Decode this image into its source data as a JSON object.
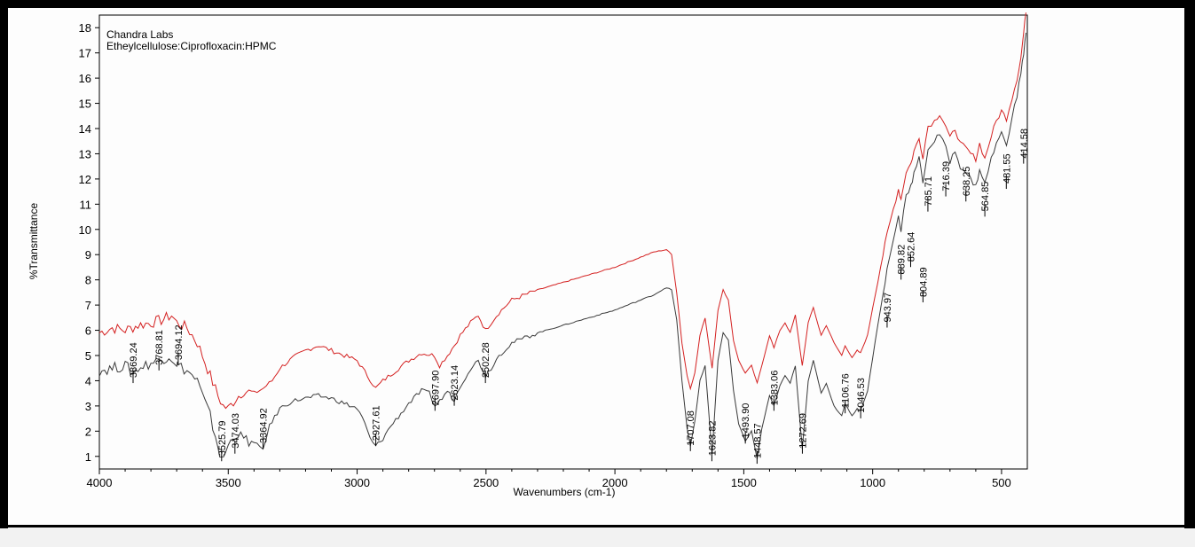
{
  "chart_data": {
    "type": "line",
    "title": "Chandra Labs",
    "subtitle": "Etheylcellulose:Ciprofloxacin:HPMC",
    "xlabel": "Wavenumbers (cm-1)",
    "ylabel": "%Transmittance",
    "xlim": [
      4000,
      400
    ],
    "ylim": [
      0.5,
      18.5
    ],
    "x_reversed": true,
    "x_ticks": [
      4000,
      3500,
      3000,
      2500,
      2000,
      1500,
      1000,
      500
    ],
    "y_ticks": [
      1,
      2,
      3,
      4,
      5,
      6,
      7,
      8,
      9,
      10,
      11,
      12,
      13,
      14,
      15,
      16,
      17,
      18
    ],
    "grid": false,
    "series": [
      {
        "color": "#d42020",
        "points": [
          [
            4000,
            5.9
          ],
          [
            3950,
            6.1
          ],
          [
            3900,
            6.0
          ],
          [
            3850,
            6.2
          ],
          [
            3800,
            6.3
          ],
          [
            3760,
            6.4
          ],
          [
            3720,
            6.6
          ],
          [
            3700,
            6.3
          ],
          [
            3660,
            6.1
          ],
          [
            3620,
            5.5
          ],
          [
            3600,
            5.0
          ],
          [
            3570,
            4.2
          ],
          [
            3540,
            3.4
          ],
          [
            3520,
            3.0
          ],
          [
            3500,
            2.9
          ],
          [
            3470,
            3.3
          ],
          [
            3440,
            3.6
          ],
          [
            3400,
            3.5
          ],
          [
            3364,
            3.7
          ],
          [
            3330,
            4.0
          ],
          [
            3300,
            4.5
          ],
          [
            3250,
            4.9
          ],
          [
            3200,
            5.2
          ],
          [
            3150,
            5.4
          ],
          [
            3100,
            5.2
          ],
          [
            3050,
            5.0
          ],
          [
            3000,
            4.8
          ],
          [
            2960,
            4.2
          ],
          [
            2928,
            3.7
          ],
          [
            2900,
            4.0
          ],
          [
            2850,
            4.4
          ],
          [
            2800,
            4.8
          ],
          [
            2750,
            5.1
          ],
          [
            2700,
            5.0
          ],
          [
            2680,
            4.6
          ],
          [
            2650,
            5.0
          ],
          [
            2623,
            5.4
          ],
          [
            2600,
            5.8
          ],
          [
            2560,
            6.3
          ],
          [
            2530,
            6.6
          ],
          [
            2502,
            6.0
          ],
          [
            2480,
            6.3
          ],
          [
            2450,
            6.7
          ],
          [
            2400,
            7.2
          ],
          [
            2300,
            7.6
          ],
          [
            2200,
            7.9
          ],
          [
            2100,
            8.2
          ],
          [
            2000,
            8.5
          ],
          [
            1900,
            8.9
          ],
          [
            1850,
            9.1
          ],
          [
            1800,
            9.2
          ],
          [
            1780,
            9.0
          ],
          [
            1760,
            7.5
          ],
          [
            1740,
            5.5
          ],
          [
            1720,
            4.2
          ],
          [
            1707,
            3.7
          ],
          [
            1690,
            4.3
          ],
          [
            1670,
            5.8
          ],
          [
            1650,
            6.5
          ],
          [
            1623,
            4.5
          ],
          [
            1600,
            6.8
          ],
          [
            1580,
            7.6
          ],
          [
            1560,
            7.2
          ],
          [
            1540,
            5.6
          ],
          [
            1520,
            4.8
          ],
          [
            1494,
            4.3
          ],
          [
            1470,
            4.6
          ],
          [
            1448,
            3.9
          ],
          [
            1430,
            4.6
          ],
          [
            1400,
            5.8
          ],
          [
            1383,
            5.3
          ],
          [
            1360,
            6.0
          ],
          [
            1340,
            6.3
          ],
          [
            1320,
            5.9
          ],
          [
            1300,
            6.6
          ],
          [
            1273,
            4.6
          ],
          [
            1250,
            6.3
          ],
          [
            1230,
            6.9
          ],
          [
            1200,
            5.8
          ],
          [
            1180,
            6.2
          ],
          [
            1150,
            5.5
          ],
          [
            1120,
            5.0
          ],
          [
            1107,
            5.4
          ],
          [
            1080,
            4.9
          ],
          [
            1060,
            5.2
          ],
          [
            1047,
            5.1
          ],
          [
            1020,
            5.8
          ],
          [
            1000,
            6.9
          ],
          [
            980,
            8.0
          ],
          [
            960,
            9.0
          ],
          [
            944,
            9.8
          ],
          [
            920,
            10.8
          ],
          [
            900,
            11.6
          ],
          [
            890,
            11.2
          ],
          [
            870,
            12.3
          ],
          [
            852,
            12.6
          ],
          [
            840,
            13.1
          ],
          [
            820,
            13.6
          ],
          [
            805,
            12.9
          ],
          [
            785,
            14.1
          ],
          [
            760,
            14.3
          ],
          [
            740,
            14.6
          ],
          [
            716,
            14.1
          ],
          [
            700,
            13.6
          ],
          [
            680,
            14.0
          ],
          [
            660,
            13.4
          ],
          [
            638,
            13.2
          ],
          [
            620,
            13.0
          ],
          [
            600,
            12.8
          ],
          [
            585,
            13.4
          ],
          [
            565,
            12.8
          ],
          [
            540,
            13.7
          ],
          [
            520,
            14.3
          ],
          [
            500,
            14.7
          ],
          [
            481,
            14.4
          ],
          [
            460,
            15.2
          ],
          [
            440,
            16.0
          ],
          [
            425,
            16.8
          ],
          [
            414,
            17.8
          ],
          [
            405,
            18.6
          ]
        ]
      },
      {
        "color": "#3a3a3a",
        "points": [
          [
            4000,
            4.4
          ],
          [
            3950,
            4.5
          ],
          [
            3900,
            4.6
          ],
          [
            3869,
            4.3
          ],
          [
            3850,
            4.5
          ],
          [
            3800,
            4.7
          ],
          [
            3769,
            4.8
          ],
          [
            3730,
            5.0
          ],
          [
            3700,
            4.7
          ],
          [
            3694,
            4.6
          ],
          [
            3660,
            4.4
          ],
          [
            3620,
            4.0
          ],
          [
            3600,
            3.4
          ],
          [
            3570,
            2.6
          ],
          [
            3540,
            1.4
          ],
          [
            3526,
            0.8
          ],
          [
            3510,
            1.2
          ],
          [
            3490,
            1.6
          ],
          [
            3474,
            1.9
          ],
          [
            3440,
            1.7
          ],
          [
            3400,
            1.5
          ],
          [
            3365,
            1.3
          ],
          [
            3340,
            2.2
          ],
          [
            3300,
            2.9
          ],
          [
            3250,
            3.2
          ],
          [
            3200,
            3.3
          ],
          [
            3150,
            3.4
          ],
          [
            3100,
            3.3
          ],
          [
            3050,
            3.1
          ],
          [
            3000,
            2.9
          ],
          [
            2970,
            2.3
          ],
          [
            2950,
            1.7
          ],
          [
            2928,
            1.4
          ],
          [
            2900,
            1.7
          ],
          [
            2870,
            2.2
          ],
          [
            2830,
            2.7
          ],
          [
            2800,
            3.1
          ],
          [
            2750,
            3.6
          ],
          [
            2720,
            3.5
          ],
          [
            2698,
            3.0
          ],
          [
            2670,
            3.3
          ],
          [
            2650,
            3.6
          ],
          [
            2623,
            3.2
          ],
          [
            2600,
            3.8
          ],
          [
            2560,
            4.5
          ],
          [
            2530,
            4.8
          ],
          [
            2502,
            4.2
          ],
          [
            2480,
            4.5
          ],
          [
            2450,
            5.0
          ],
          [
            2400,
            5.5
          ],
          [
            2300,
            5.9
          ],
          [
            2200,
            6.2
          ],
          [
            2100,
            6.5
          ],
          [
            2000,
            6.8
          ],
          [
            1900,
            7.2
          ],
          [
            1850,
            7.4
          ],
          [
            1800,
            7.7
          ],
          [
            1780,
            7.6
          ],
          [
            1760,
            6.4
          ],
          [
            1740,
            4.0
          ],
          [
            1720,
            2.1
          ],
          [
            1707,
            1.4
          ],
          [
            1690,
            2.4
          ],
          [
            1670,
            4.0
          ],
          [
            1650,
            4.6
          ],
          [
            1623,
            1.1
          ],
          [
            1600,
            4.8
          ],
          [
            1580,
            5.9
          ],
          [
            1560,
            5.6
          ],
          [
            1540,
            3.6
          ],
          [
            1520,
            2.3
          ],
          [
            1494,
            1.6
          ],
          [
            1470,
            2.0
          ],
          [
            1448,
            0.9
          ],
          [
            1430,
            2.1
          ],
          [
            1400,
            3.4
          ],
          [
            1383,
            3.0
          ],
          [
            1360,
            3.8
          ],
          [
            1340,
            4.2
          ],
          [
            1320,
            3.9
          ],
          [
            1300,
            4.6
          ],
          [
            1273,
            1.3
          ],
          [
            1250,
            4.0
          ],
          [
            1230,
            4.8
          ],
          [
            1200,
            3.5
          ],
          [
            1180,
            3.9
          ],
          [
            1150,
            3.0
          ],
          [
            1120,
            2.6
          ],
          [
            1107,
            3.1
          ],
          [
            1080,
            2.6
          ],
          [
            1060,
            2.9
          ],
          [
            1047,
            2.8
          ],
          [
            1020,
            3.6
          ],
          [
            1000,
            4.9
          ],
          [
            980,
            6.2
          ],
          [
            960,
            7.4
          ],
          [
            944,
            8.4
          ],
          [
            920,
            9.6
          ],
          [
            900,
            10.5
          ],
          [
            890,
            10.0
          ],
          [
            870,
            11.4
          ],
          [
            852,
            11.7
          ],
          [
            840,
            12.2
          ],
          [
            820,
            12.8
          ],
          [
            805,
            11.9
          ],
          [
            785,
            13.2
          ],
          [
            760,
            13.5
          ],
          [
            740,
            13.8
          ],
          [
            716,
            13.2
          ],
          [
            700,
            12.7
          ],
          [
            680,
            13.1
          ],
          [
            660,
            12.5
          ],
          [
            638,
            12.3
          ],
          [
            620,
            12.0
          ],
          [
            600,
            11.7
          ],
          [
            585,
            12.4
          ],
          [
            565,
            11.8
          ],
          [
            540,
            12.8
          ],
          [
            520,
            13.4
          ],
          [
            500,
            13.8
          ],
          [
            481,
            13.4
          ],
          [
            460,
            14.4
          ],
          [
            440,
            15.3
          ],
          [
            425,
            16.2
          ],
          [
            414,
            17.0
          ],
          [
            405,
            17.8
          ]
        ]
      }
    ],
    "peak_labels": [
      {
        "x": 3869.24,
        "text": "3869.24",
        "y": 4.4
      },
      {
        "x": 3768.81,
        "text": "3768.81",
        "y": 4.9
      },
      {
        "x": 3694.12,
        "text": "3694.12",
        "y": 5.1
      },
      {
        "x": 3525.79,
        "text": "3525.79",
        "y": 1.3
      },
      {
        "x": 3474.03,
        "text": "3474.03",
        "y": 1.6
      },
      {
        "x": 3364.92,
        "text": "3364.92",
        "y": 1.8
      },
      {
        "x": 2927.61,
        "text": "2927.61",
        "y": 1.9
      },
      {
        "x": 2697.9,
        "text": "2697.90",
        "y": 3.3
      },
      {
        "x": 2623.14,
        "text": "2623.14",
        "y": 3.5
      },
      {
        "x": 2502.28,
        "text": "2502.28",
        "y": 4.4
      },
      {
        "x": 1707.08,
        "text": "1707.08",
        "y": 1.7
      },
      {
        "x": 1623.82,
        "text": "1623.82",
        "y": 1.3
      },
      {
        "x": 1493.9,
        "text": "1493.90",
        "y": 2.0
      },
      {
        "x": 1448.57,
        "text": "1448.57",
        "y": 1.2
      },
      {
        "x": 1383.06,
        "text": "1383.06",
        "y": 3.3
      },
      {
        "x": 1272.69,
        "text": "1272.69",
        "y": 1.6
      },
      {
        "x": 1106.76,
        "text": "1106.76",
        "y": 3.2
      },
      {
        "x": 1046.53,
        "text": "1046.53",
        "y": 3.0
      },
      {
        "x": 943.97,
        "text": "943.97",
        "y": 6.6
      },
      {
        "x": 889.82,
        "text": "889.82",
        "y": 8.5
      },
      {
        "x": 852.64,
        "text": "852.64",
        "y": 9.0
      },
      {
        "x": 804.89,
        "text": "804.89",
        "y": 7.6
      },
      {
        "x": 785.71,
        "text": "785.71",
        "y": 11.2
      },
      {
        "x": 716.39,
        "text": "716.39",
        "y": 11.8
      },
      {
        "x": 638.25,
        "text": "638.25",
        "y": 11.6
      },
      {
        "x": 564.85,
        "text": "564.85",
        "y": 11.0
      },
      {
        "x": 481.55,
        "text": "481.55",
        "y": 12.1
      },
      {
        "x": 414.58,
        "text": "414.58",
        "y": 13.1
      }
    ]
  }
}
